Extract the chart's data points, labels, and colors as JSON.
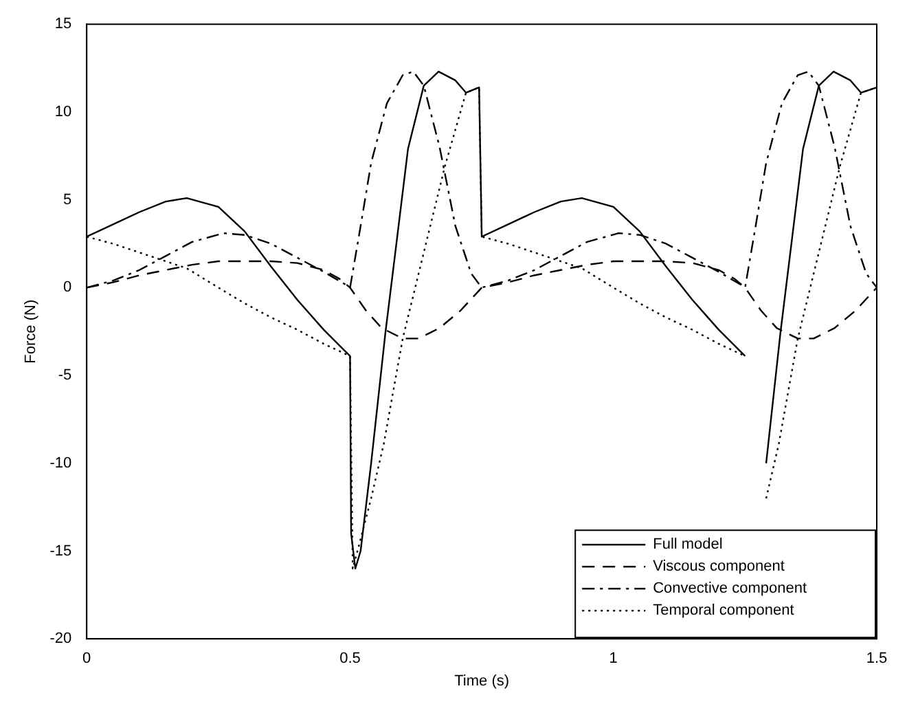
{
  "chart_data": {
    "type": "line",
    "xlabel": "Time (s)",
    "ylabel": "Force (N)",
    "xlim": [
      0,
      1.5
    ],
    "xticks": [
      0,
      0.5,
      1,
      1.5
    ],
    "ylim": [
      -20,
      15
    ],
    "yticks": [
      -20,
      -15,
      -10,
      -5,
      0,
      5,
      10,
      15
    ],
    "grid": false,
    "legend": "bottom right",
    "marker": "none",
    "series": [
      {
        "name": "Full model",
        "color": "#000000",
        "line_style": "solid",
        "x": [
          0,
          0.05,
          0.1,
          0.15,
          0.19,
          0.25,
          0.3,
          0.35,
          0.4,
          0.45,
          0.5,
          0.502,
          0.51,
          0.52,
          0.54,
          0.567,
          0.59,
          0.61,
          0.64,
          0.668,
          0.7,
          0.72,
          0.745,
          0.75,
          0.8,
          0.85,
          0.9,
          0.94,
          1.0,
          1.05,
          1.1,
          1.15,
          1.2,
          1.25,
          1.252,
          1.26,
          1.27,
          1.29,
          1.317,
          1.34,
          1.36,
          1.39,
          1.418,
          1.45,
          1.47,
          1.5
        ],
        "values": [
          2.9,
          3.6,
          4.3,
          4.9,
          5.1,
          4.6,
          3.2,
          1.2,
          -0.7,
          -2.4,
          -3.9,
          -14,
          -16,
          -15,
          -10,
          -2.6,
          3,
          7.9,
          11.5,
          12.3,
          11.8,
          11.1,
          11.4,
          2.9,
          3.6,
          4.3,
          4.9,
          5.1,
          4.6,
          3.2,
          1.2,
          -0.7,
          -2.4,
          -3.9,
          null,
          null,
          null,
          -10,
          -2.6,
          3,
          7.9,
          11.5,
          12.3,
          11.8,
          11.1,
          11.4
        ]
      },
      {
        "name": "Viscous component",
        "color": "#000000",
        "line_style": "dashed",
        "x": [
          0,
          0.05,
          0.1,
          0.15,
          0.2,
          0.25,
          0.3,
          0.35,
          0.4,
          0.45,
          0.48,
          0.5,
          0.53,
          0.56,
          0.6,
          0.63,
          0.67,
          0.71,
          0.75,
          0.8,
          0.85,
          0.9,
          0.95,
          1.0,
          1.05,
          1.1,
          1.15,
          1.2,
          1.23,
          1.25,
          1.28,
          1.31,
          1.35,
          1.38,
          1.42,
          1.46,
          1.5
        ],
        "values": [
          0,
          0.3,
          0.7,
          1.0,
          1.3,
          1.5,
          1.5,
          1.5,
          1.4,
          1.0,
          0.5,
          0,
          -1.3,
          -2.3,
          -2.9,
          -2.9,
          -2.3,
          -1.3,
          0,
          0.3,
          0.7,
          1.0,
          1.3,
          1.5,
          1.5,
          1.5,
          1.4,
          1.0,
          0.5,
          0,
          -1.3,
          -2.3,
          -2.9,
          -2.9,
          -2.3,
          -1.3,
          0
        ]
      },
      {
        "name": "Convective component",
        "color": "#000000",
        "line_style": "dashdot",
        "x": [
          0,
          0.05,
          0.1,
          0.15,
          0.2,
          0.26,
          0.3,
          0.35,
          0.4,
          0.45,
          0.49,
          0.5,
          0.52,
          0.54,
          0.57,
          0.6,
          0.62,
          0.64,
          0.67,
          0.7,
          0.73,
          0.75,
          0.8,
          0.85,
          0.9,
          0.95,
          1.01,
          1.05,
          1.1,
          1.15,
          1.2,
          1.24,
          1.25,
          1.27,
          1.29,
          1.32,
          1.35,
          1.37,
          1.39,
          1.42,
          1.45,
          1.48,
          1.5
        ],
        "values": [
          0,
          0.4,
          1.0,
          1.8,
          2.6,
          3.1,
          3.0,
          2.5,
          1.7,
          0.9,
          0.2,
          0,
          3.5,
          7.1,
          10.5,
          12.1,
          12.3,
          11.5,
          8,
          3.5,
          0.8,
          0,
          0.4,
          1.0,
          1.8,
          2.6,
          3.1,
          3.0,
          2.5,
          1.7,
          0.9,
          0.2,
          0,
          3.5,
          7.1,
          10.5,
          12.1,
          12.3,
          11.5,
          8,
          3.5,
          0.8,
          0
        ]
      },
      {
        "name": "Temporal component",
        "color": "#000000",
        "line_style": "dotted",
        "x": [
          0,
          0.05,
          0.1,
          0.15,
          0.19,
          0.25,
          0.3,
          0.35,
          0.4,
          0.45,
          0.5,
          0.505,
          0.515,
          0.54,
          0.564,
          0.6,
          0.64,
          0.68,
          0.72,
          0.745,
          0.75,
          0.8,
          0.85,
          0.9,
          0.94,
          1.0,
          1.05,
          1.1,
          1.15,
          1.2,
          1.25,
          1.255,
          1.265,
          1.29,
          1.314,
          1.35,
          1.39,
          1.43,
          1.47,
          1.5
        ],
        "values": [
          2.9,
          2.5,
          2.0,
          1.5,
          1.1,
          0,
          -0.9,
          -1.7,
          -2.4,
          -3.2,
          -3.9,
          -16,
          -14.9,
          -12,
          -8.9,
          -2.9,
          2,
          6.9,
          11.1,
          11.4,
          2.9,
          2.5,
          2.0,
          1.5,
          1.1,
          0,
          -0.9,
          -1.7,
          -2.4,
          -3.2,
          -3.9,
          null,
          null,
          -12,
          -8.9,
          -2.9,
          2,
          6.9,
          11.1,
          11.4
        ]
      }
    ]
  }
}
